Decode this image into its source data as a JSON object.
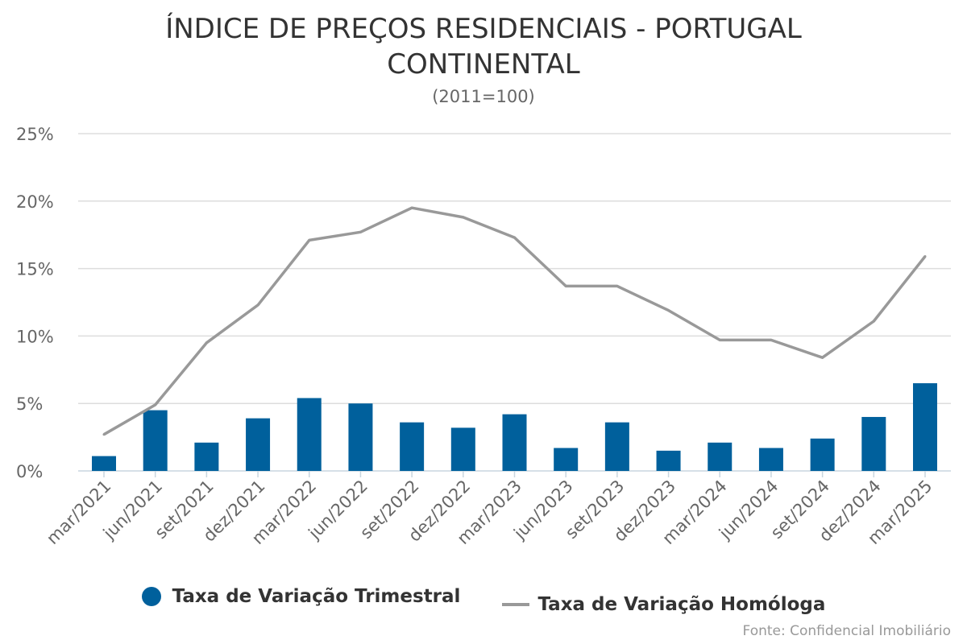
{
  "header": {
    "title_line1": "ÍNDICE DE PREÇOS RESIDENCIAIS - PORTUGAL",
    "title_line2": "CONTINENTAL",
    "subtitle": "(2011=100)"
  },
  "source": "Fonte: Confidencial Imobiliário",
  "colors": {
    "bar": "#00609c",
    "line": "#999999",
    "grid": "#dddddd",
    "axis_text": "#666666"
  },
  "chart_data": {
    "type": "bar",
    "categories": [
      "mar/2021",
      "jun/2021",
      "set/2021",
      "dez/2021",
      "mar/2022",
      "jun/2022",
      "set/2022",
      "dez/2022",
      "mar/2023",
      "jun/2023",
      "set/2023",
      "dez/2023",
      "mar/2024",
      "jun/2024",
      "set/2024",
      "dez/2024",
      "mar/2025"
    ],
    "series": [
      {
        "name": "Taxa de Variação Trimestral",
        "type": "bar",
        "values": [
          1.1,
          4.5,
          2.1,
          3.9,
          5.4,
          5.0,
          3.6,
          3.2,
          4.2,
          1.7,
          3.6,
          1.5,
          2.1,
          1.7,
          2.4,
          4.0,
          6.5
        ]
      },
      {
        "name": "Taxa de Variação Homóloga",
        "type": "line",
        "values": [
          2.7,
          4.9,
          9.5,
          12.3,
          17.1,
          17.7,
          19.5,
          18.8,
          17.3,
          13.7,
          13.7,
          11.9,
          9.7,
          9.7,
          8.4,
          11.1,
          15.9
        ]
      }
    ],
    "ylim": [
      0,
      25
    ],
    "yticks": [
      0,
      5,
      10,
      15,
      20,
      25
    ],
    "ytick_labels": [
      "0%",
      "5%",
      "10%",
      "15%",
      "20%",
      "25%"
    ],
    "grid": true,
    "legend_position": "bottom"
  }
}
